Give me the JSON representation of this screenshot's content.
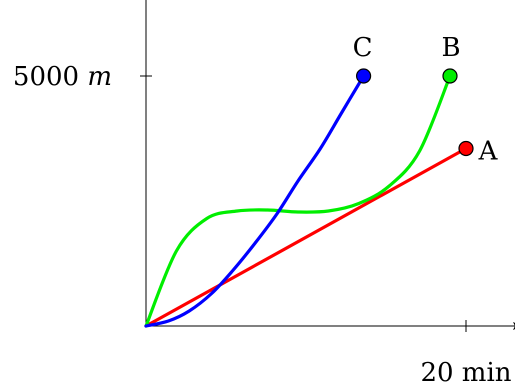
{
  "chart_data": {
    "type": "line",
    "xlabel": "",
    "ylabel": "",
    "x_tick": {
      "value": 20,
      "label": "20 min"
    },
    "y_tick": {
      "value": 5000,
      "number": "5000",
      "unit": "m"
    },
    "xlim": [
      0,
      23.5
    ],
    "ylim": [
      0,
      7500
    ],
    "grid": false,
    "series": [
      {
        "name": "A",
        "color": "#ff0000",
        "end_marker": true,
        "x": [
          0,
          20
        ],
        "y": [
          0,
          3550
        ]
      },
      {
        "name": "B",
        "color": "#00ee00",
        "end_marker": true,
        "x": [
          0,
          1.9,
          3.8,
          5.7,
          7.6,
          9.5,
          11.4,
          13.3,
          15.2,
          17.1,
          19
        ],
        "y": [
          0,
          1500,
          2150,
          2300,
          2320,
          2280,
          2300,
          2450,
          2800,
          3500,
          5000
        ]
      },
      {
        "name": "C",
        "color": "#0000ff",
        "end_marker": true,
        "x": [
          0,
          1.4,
          2.7,
          4.1,
          5.4,
          6.8,
          8.2,
          9.5,
          10.9,
          12.2,
          13.6
        ],
        "y": [
          0,
          100,
          300,
          650,
          1100,
          1650,
          2250,
          2900,
          3550,
          4250,
          5000
        ]
      }
    ]
  }
}
